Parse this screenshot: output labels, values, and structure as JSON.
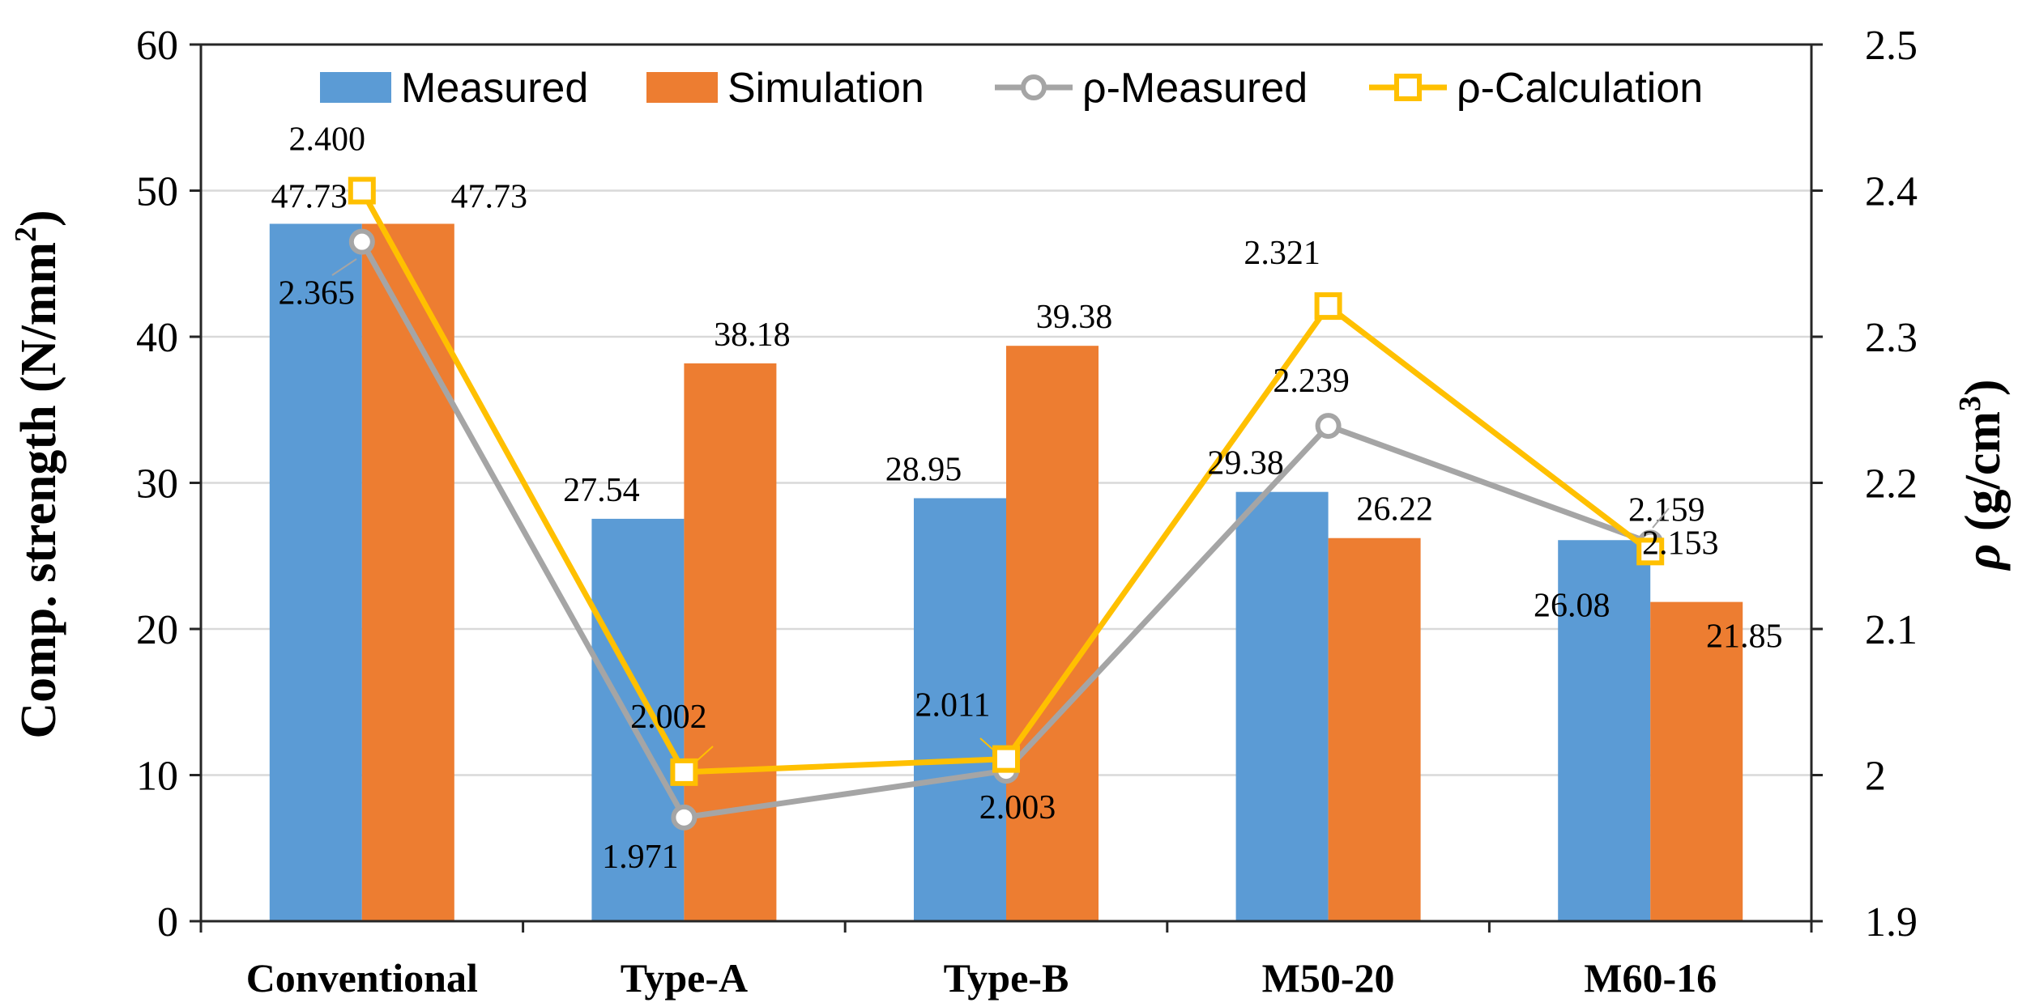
{
  "chart_data": {
    "type": "bar",
    "categories": [
      "Conventional",
      "Type-A",
      "Type-B",
      "M50-20",
      "M60-16"
    ],
    "series": [
      {
        "name": "Measured",
        "kind": "bar",
        "axis": "left",
        "color": "#5B9BD5",
        "values": [
          47.73,
          27.54,
          28.95,
          29.38,
          26.08
        ],
        "labels": [
          "47.73",
          "27.54",
          "28.95",
          "29.38",
          "26.08"
        ]
      },
      {
        "name": "Simulation",
        "kind": "bar",
        "axis": "left",
        "color": "#ED7D31",
        "values": [
          47.73,
          38.18,
          39.38,
          26.22,
          21.85
        ],
        "labels": [
          "47.73",
          "38.18",
          "39.38",
          "26.22",
          "21.85"
        ]
      },
      {
        "name": "ρ-Measured",
        "kind": "line",
        "axis": "right",
        "marker": "circle",
        "color": "#A5A5A5",
        "values": [
          2.365,
          1.971,
          2.003,
          2.239,
          2.159
        ],
        "labels": [
          "2.365",
          "1.971",
          "2.003",
          "2.239",
          "2.159"
        ]
      },
      {
        "name": "ρ-Calculation",
        "kind": "line",
        "axis": "right",
        "marker": "square",
        "color": "#FFC000",
        "values": [
          2.4,
          2.002,
          2.011,
          2.321,
          2.153
        ],
        "labels": [
          "2.400",
          "2.002",
          "2.011",
          "2.321",
          "2.153"
        ]
      }
    ],
    "left_axis": {
      "min": 0,
      "max": 60,
      "step": 10,
      "tick_labels": [
        "0",
        "10",
        "20",
        "30",
        "40",
        "50",
        "60"
      ],
      "title": "Comp. strength (N/mm",
      "title_sup": "2",
      "title_end": ")"
    },
    "right_axis": {
      "min": 1.9,
      "max": 2.5,
      "step": 0.1,
      "tick_labels": [
        "1.9",
        "2",
        "2.1",
        "2.2",
        "2.3",
        "2.4",
        "2.5"
      ],
      "title_rho": "ρ",
      "title": " (g/cm",
      "title_sup": "3",
      "title_end": ")"
    },
    "grid": true,
    "legend_position": "top"
  }
}
